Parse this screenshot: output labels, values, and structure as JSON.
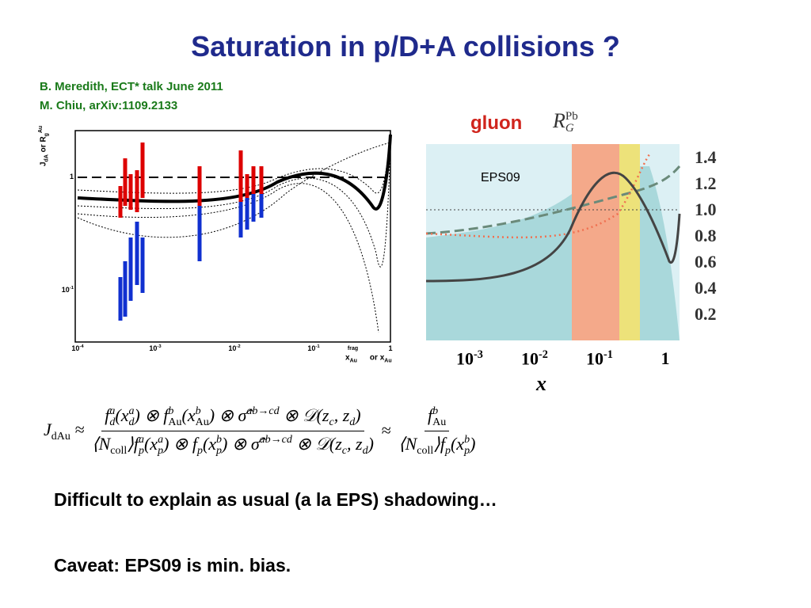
{
  "title": "Saturation in p/D+A collisions ?",
  "credits": [
    "B. Meredith, ECT* talk June 2011",
    "M. Chiu, arXiv:1109.2133"
  ],
  "left_plot": {
    "y_axis_label": [
      "J",
      "dA",
      " or R",
      "g",
      "Au"
    ],
    "yticks": [
      {
        "base": "1",
        "exp": ""
      },
      {
        "base": "10",
        "exp": "-1"
      }
    ],
    "xticks": [
      {
        "base": "10",
        "exp": "-4"
      },
      {
        "base": "10",
        "exp": "-3"
      },
      {
        "base": "10",
        "exp": "-2"
      },
      {
        "base": "10",
        "exp": "-1"
      },
      {
        "base": "1",
        "exp": ""
      }
    ],
    "x_axis_label": [
      "x",
      "Au",
      "frag",
      " or x",
      "Au"
    ]
  },
  "right_plot": {
    "legend": "gluon",
    "quantity": [
      "R",
      "G",
      "Pb"
    ],
    "annotation": "EPS09",
    "yticks": [
      "1.4",
      "1.2",
      "1.0",
      "0.8",
      "0.6",
      "0.4",
      "0.2"
    ],
    "xticks": [
      {
        "base": "10",
        "exp": "-3"
      },
      {
        "base": "10",
        "exp": "-2"
      },
      {
        "base": "10",
        "exp": "-1"
      },
      {
        "base": "1",
        "exp": ""
      }
    ],
    "x_axis_label": "x"
  },
  "formula": {
    "lhs": [
      [
        "J",
        "",
        "dAu"
      ],
      " ≈ "
    ],
    "num1": [
      [
        "f",
        "a",
        "d"
      ],
      "(",
      [
        "x",
        "a",
        "d"
      ],
      ") ⊗ ",
      [
        "f",
        "b",
        "Au"
      ],
      "(",
      [
        "x",
        "b",
        "Au"
      ],
      ") ⊗ ",
      [
        "σ̂",
        "ab→cd",
        ""
      ],
      " ⊗ 𝒟(",
      [
        "z",
        "",
        "c"
      ],
      ", ",
      [
        "z",
        "",
        "d"
      ],
      ")"
    ],
    "den1": [
      "⟨",
      [
        "N",
        "",
        "coll"
      ],
      "⟩",
      [
        "f",
        "a",
        "p"
      ],
      "(",
      [
        "x",
        "a",
        "p"
      ],
      ") ⊗ ",
      [
        "f",
        "",
        "p"
      ],
      "(",
      [
        "x",
        "b",
        "p"
      ],
      ") ⊗ ",
      [
        "σ̂",
        "ab→cd",
        ""
      ],
      " ⊗ 𝒟(",
      [
        "z",
        "",
        "c"
      ],
      ", ",
      [
        "z",
        "",
        "d"
      ],
      ")"
    ],
    "mid": " ≈ ",
    "num2": [
      [
        "f",
        "b",
        "Au"
      ]
    ],
    "den2": [
      "⟨",
      [
        "N",
        "",
        "coll"
      ],
      "⟩",
      [
        "f",
        "",
        "p"
      ],
      "(",
      [
        "x",
        "b",
        "p"
      ],
      ")"
    ]
  },
  "bullets": [
    "Difficult to explain as usual (a la EPS) shadowing…",
    "Caveat: EPS09 is min. bias."
  ]
}
